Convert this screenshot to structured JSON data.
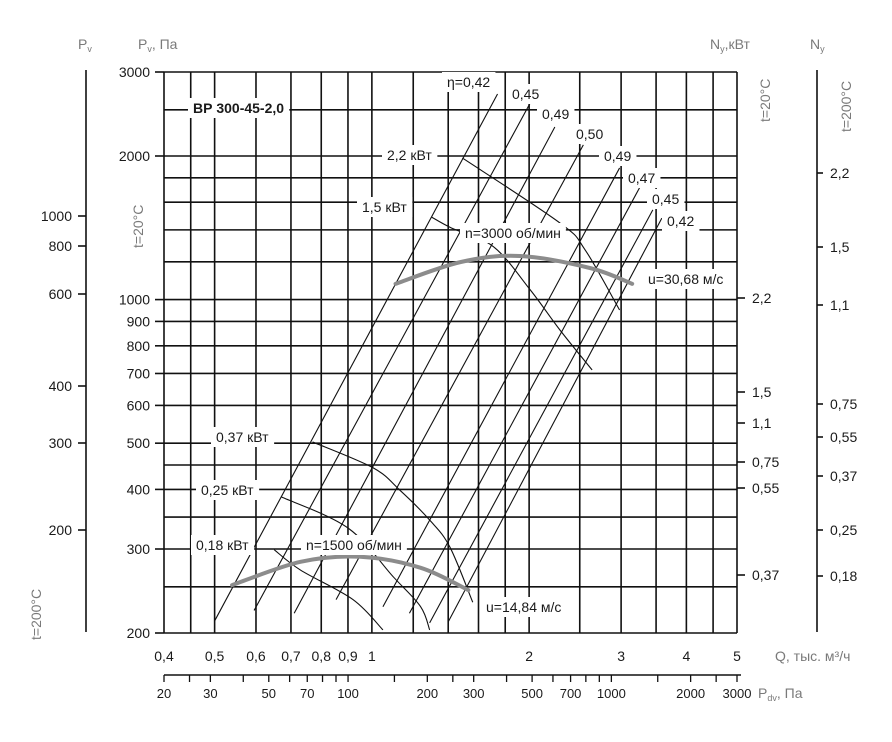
{
  "chart_data": {
    "type": "line",
    "title": "ВР 300-45-2,0",
    "grid": true,
    "x_axis": {
      "label": "Q, тыс. м³/ч",
      "scale": "log",
      "range": [
        0.4,
        5
      ],
      "ticks": [
        {
          "v": 0.4,
          "t": "0,4"
        },
        {
          "v": 0.5,
          "t": "0,5"
        },
        {
          "v": 0.6,
          "t": "0,6"
        },
        {
          "v": 0.7,
          "t": "0,7"
        },
        {
          "v": 0.8,
          "t": "0,8"
        },
        {
          "v": 0.9,
          "t": "0,9"
        },
        {
          "v": 1,
          "t": "1"
        },
        {
          "v": 2,
          "t": "2"
        },
        {
          "v": 3,
          "t": "3"
        },
        {
          "v": 4,
          "t": "4"
        },
        {
          "v": 5,
          "t": "5"
        }
      ],
      "grid_values": [
        0.4,
        0.45,
        0.5,
        0.6,
        0.7,
        0.8,
        0.9,
        1,
        1.2,
        1.4,
        1.6,
        1.8,
        2,
        2.5,
        3,
        3.5,
        4,
        4.5,
        5
      ]
    },
    "y_axis": {
      "label_main": "P",
      "label_sub": "v",
      "label_suffix": ", Па",
      "temp_label": "t=20°C",
      "scale": "log",
      "range": [
        200,
        3000
      ],
      "ticks": [
        {
          "v": 3000,
          "t": "3000"
        },
        {
          "v": 2000,
          "t": "2000"
        },
        {
          "v": 1000,
          "t": "1000"
        },
        {
          "v": 900,
          "t": "900"
        },
        {
          "v": 800,
          "t": "800"
        },
        {
          "v": 700,
          "t": "700"
        },
        {
          "v": 600,
          "t": "600"
        },
        {
          "v": 500,
          "t": "500"
        },
        {
          "v": 400,
          "t": "400"
        },
        {
          "v": 300,
          "t": "300"
        },
        {
          "v": 200,
          "t": "200"
        }
      ],
      "grid_values": [
        200,
        250,
        300,
        350,
        400,
        450,
        500,
        600,
        700,
        800,
        900,
        1000,
        1200,
        1400,
        1600,
        1800,
        2000,
        2500,
        3000
      ]
    },
    "y_axis_200C": {
      "label_main": "P",
      "label_sub": "v",
      "temp_label": "t=200°C",
      "ticks": [
        {
          "t": "1000"
        },
        {
          "t": "800"
        },
        {
          "t": "600"
        },
        {
          "t": "400"
        },
        {
          "t": "300"
        },
        {
          "t": "200"
        }
      ]
    },
    "power_axis_20C": {
      "label_main": "N",
      "label_sub": "y",
      "label_suffix": ",кВт",
      "temp_label": "t=20°C",
      "ticks": [
        {
          "t": "2,2"
        },
        {
          "t": "1,5"
        },
        {
          "t": "1,1"
        },
        {
          "t": "0,75"
        },
        {
          "t": "0,55"
        },
        {
          "t": "0,37"
        }
      ]
    },
    "power_axis_200C": {
      "label_main": "N",
      "label_sub": "y",
      "temp_label": "t=200°C",
      "ticks": [
        {
          "t": "2,2"
        },
        {
          "t": "1,5"
        },
        {
          "t": "1,1"
        },
        {
          "t": "0,75"
        },
        {
          "t": "0,55"
        },
        {
          "t": "0,37"
        },
        {
          "t": "0,25"
        },
        {
          "t": "0,18"
        }
      ]
    },
    "dynamic_pressure_axis": {
      "label_main": "P",
      "label_sub": "dv",
      "label_suffix": ", Па",
      "scale": "log",
      "range": [
        20,
        3000
      ],
      "labels": [
        {
          "v": 20,
          "t": "20"
        },
        {
          "v": 30,
          "t": "30"
        },
        {
          "v": 50,
          "t": "50"
        },
        {
          "v": 70,
          "t": "70"
        },
        {
          "v": 100,
          "t": "100"
        },
        {
          "v": 200,
          "t": "200"
        },
        {
          "v": 300,
          "t": "300"
        },
        {
          "v": 500,
          "t": "500"
        },
        {
          "v": 700,
          "t": "700"
        },
        {
          "v": 1000,
          "t": "1000"
        },
        {
          "v": 2000,
          "t": "2000"
        },
        {
          "v": 3000,
          "t": "3000"
        }
      ],
      "minor_ticks": [
        20,
        25,
        30,
        40,
        50,
        60,
        70,
        80,
        90,
        100,
        150,
        200,
        250,
        300,
        400,
        500,
        600,
        700,
        800,
        900,
        1000,
        1500,
        2000,
        2500,
        3000
      ]
    },
    "performance_curves": [
      {
        "label": "n=3000 об/мин",
        "tip_speed": "u=30,68 м/с",
        "color": "#8c8c8c",
        "points": [
          [
            1.11,
            1079
          ],
          [
            1.48,
            1199
          ],
          [
            1.92,
            1234
          ],
          [
            2.62,
            1164
          ],
          [
            3.15,
            1079
          ]
        ]
      },
      {
        "label": "n=1500 об/мин",
        "tip_speed": "u=14,84 м/с",
        "color": "#8c8c8c",
        "points": [
          [
            0.54,
            252
          ],
          [
            0.73,
            282
          ],
          [
            0.95,
            289
          ],
          [
            1.24,
            274
          ],
          [
            1.53,
            246
          ]
        ]
      }
    ],
    "power_curves": [
      {
        "label": "2,2 кВт",
        "points": [
          [
            1.49,
            1981
          ],
          [
            2.29,
            1448
          ],
          [
            2.56,
            1271
          ],
          [
            2.98,
            951
          ]
        ]
      },
      {
        "label": "1,5 кВт",
        "points": [
          [
            1.3,
            1490
          ],
          [
            1.42,
            1413
          ],
          [
            1.71,
            1290
          ],
          [
            2.01,
            1048
          ],
          [
            2.29,
            864
          ],
          [
            2.64,
            712
          ]
        ]
      },
      {
        "label": "0,37 кВт",
        "points": [
          [
            0.77,
            503
          ],
          [
            1.005,
            444
          ],
          [
            1.13,
            399
          ],
          [
            1.29,
            345
          ],
          [
            1.41,
            303
          ],
          [
            1.56,
            232
          ]
        ]
      },
      {
        "label": "0,25 кВт",
        "points": [
          [
            0.67,
            386
          ],
          [
            0.9,
            332
          ],
          [
            1.1,
            262
          ],
          [
            1.24,
            227
          ],
          [
            1.29,
            203
          ]
        ]
      },
      {
        "label": "0,18 кВт",
        "points": [
          [
            0.65,
            299
          ],
          [
            0.73,
            271
          ],
          [
            0.92,
            235
          ],
          [
            1.05,
            203
          ]
        ]
      }
    ],
    "efficiency_lines": [
      {
        "label": "η=0,42",
        "points": [
          [
            0.5,
            212
          ],
          [
            1.74,
            2698
          ]
        ]
      },
      {
        "label": "0,45",
        "points": [
          [
            0.595,
            223
          ],
          [
            2.01,
            2584
          ]
        ]
      },
      {
        "label": "0,49",
        "points": [
          [
            0.71,
            220
          ],
          [
            2.24,
            2300
          ]
        ]
      },
      {
        "label": "0,50",
        "points": [
          [
            0.854,
            235
          ],
          [
            2.54,
            2110
          ]
        ]
      },
      {
        "label": "0,49",
        "points": [
          [
            1.05,
            227
          ],
          [
            2.98,
            1888
          ]
        ]
      },
      {
        "label": "0,47",
        "points": [
          [
            1.18,
            220
          ],
          [
            3.26,
            1722
          ]
        ]
      },
      {
        "label": "0,45",
        "points": [
          [
            1.29,
            210
          ],
          [
            3.45,
            1542
          ]
        ]
      },
      {
        "label": "0,42",
        "points": [
          [
            1.4,
            211
          ],
          [
            3.59,
            1482
          ]
        ]
      }
    ]
  }
}
